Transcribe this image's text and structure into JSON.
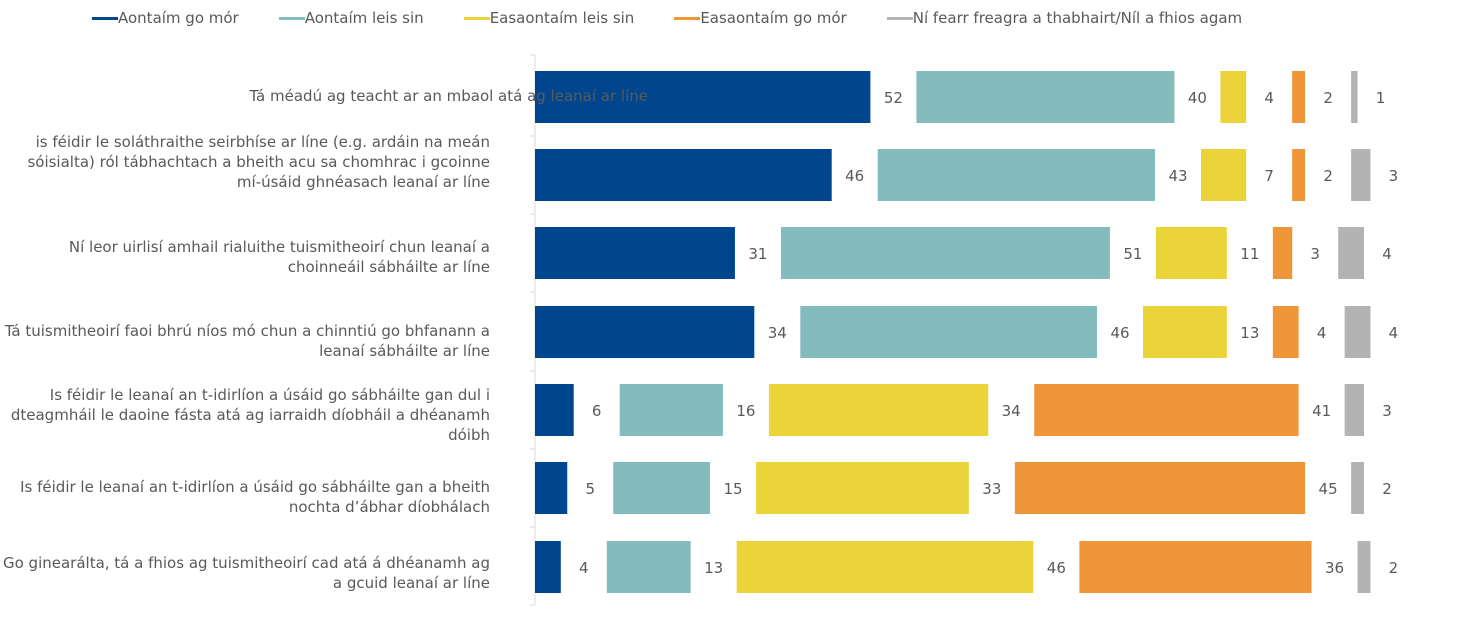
{
  "chart_data": {
    "type": "bar",
    "stacked": true,
    "orientation": "horizontal",
    "legend_position": "top",
    "categories": [
      "Tá méadú ag teacht ar an mbaol atá ag leanaí ar líne",
      "is féidir le soláthraithe seirbhíse ar líne (e.g. ardáin na meán sóisialta) ról tábhachtach a bheith acu sa chomhrac i gcoinne mí-úsáid ghnéasach leanaí ar líne",
      "Ní leor uirlisí amhail rialuithe tuismitheoirí chun leanaí a choinneáil sábháilte ar líne",
      "Tá tuismitheoirí faoi bhrú níos mó chun a chinntiú go bhfanann a leanaí sábháilte ar líne",
      "Is féidir le leanaí an t-idirlíon a úsáid go sábháilte gan dul i dteagmháil le daoine fásta atá ag iarraidh díobháil a dhéanamh dóibh",
      "Is féidir le leanaí an t-idirlíon a úsáid go sábháilte gan a bheith nochta d’ábhar díobhálach",
      "Go ginearálta, tá a fhios ag tuismitheoirí cad atá á dhéanamh ag a gcuid leanaí ar líne"
    ],
    "series": [
      {
        "name": "Aontaím go mór",
        "color": "#00468F",
        "values": [
          52,
          46,
          31,
          34,
          6,
          5,
          4
        ]
      },
      {
        "name": "Aontaím leis sin",
        "color": "#84BBBC",
        "values": [
          40,
          43,
          51,
          46,
          16,
          15,
          13
        ]
      },
      {
        "name": "Easaontaím leis sin",
        "color": "#EBD43A",
        "values": [
          4,
          7,
          11,
          13,
          34,
          33,
          46
        ]
      },
      {
        "name": "Easaontaím go mór",
        "color": "#EF9638",
        "values": [
          2,
          2,
          3,
          4,
          41,
          45,
          36
        ]
      },
      {
        "name": "Ní fearr freagra a thabhairt/Níl a fhios agam",
        "color": "#B3B3B3",
        "values": [
          1,
          3,
          4,
          4,
          3,
          2,
          2
        ]
      }
    ],
    "grid": false
  }
}
